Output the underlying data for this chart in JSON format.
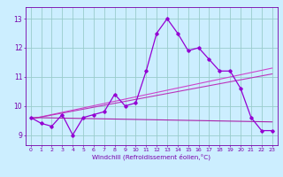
{
  "x_ticks": [
    0,
    1,
    2,
    3,
    4,
    5,
    6,
    7,
    8,
    9,
    10,
    11,
    12,
    13,
    14,
    15,
    16,
    17,
    18,
    19,
    20,
    21,
    22,
    23
  ],
  "series": [
    {
      "x": [
        0,
        1,
        2,
        3,
        4,
        5,
        6,
        7,
        8,
        9,
        10,
        11,
        12,
        13,
        14,
        15,
        16,
        17,
        18,
        19,
        20,
        21,
        22,
        23
      ],
      "y": [
        9.6,
        9.4,
        9.3,
        9.7,
        9.0,
        9.6,
        9.7,
        9.8,
        10.4,
        10.0,
        10.1,
        11.2,
        12.5,
        13.0,
        12.5,
        11.9,
        12.0,
        11.6,
        11.2,
        11.2,
        10.6,
        9.6,
        9.15,
        9.15
      ],
      "color": "#9400D3",
      "marker": "D",
      "markersize": 1.8,
      "linewidth": 0.9,
      "zorder": 3
    },
    {
      "x": [
        0,
        23
      ],
      "y": [
        9.55,
        11.3
      ],
      "color": "#CC44CC",
      "linewidth": 0.8,
      "zorder": 2
    },
    {
      "x": [
        0,
        23
      ],
      "y": [
        9.55,
        11.1
      ],
      "color": "#BB33BB",
      "linewidth": 0.8,
      "zorder": 2
    },
    {
      "x": [
        0,
        23
      ],
      "y": [
        9.6,
        9.45
      ],
      "color": "#AA22AA",
      "linewidth": 0.8,
      "zorder": 2
    }
  ],
  "ylabel_values": [
    9,
    10,
    11,
    12,
    13
  ],
  "ylim": [
    8.65,
    13.4
  ],
  "xlim": [
    -0.5,
    23.5
  ],
  "bg_color": "#cceeff",
  "grid_color": "#99cccc",
  "axis_color": "#7700aa",
  "xlabel": "Windchill (Refroidissement éolien,°C)",
  "tick_fontsize": 4.5,
  "xlabel_fontsize": 5.2,
  "ytick_fontsize": 5.5
}
